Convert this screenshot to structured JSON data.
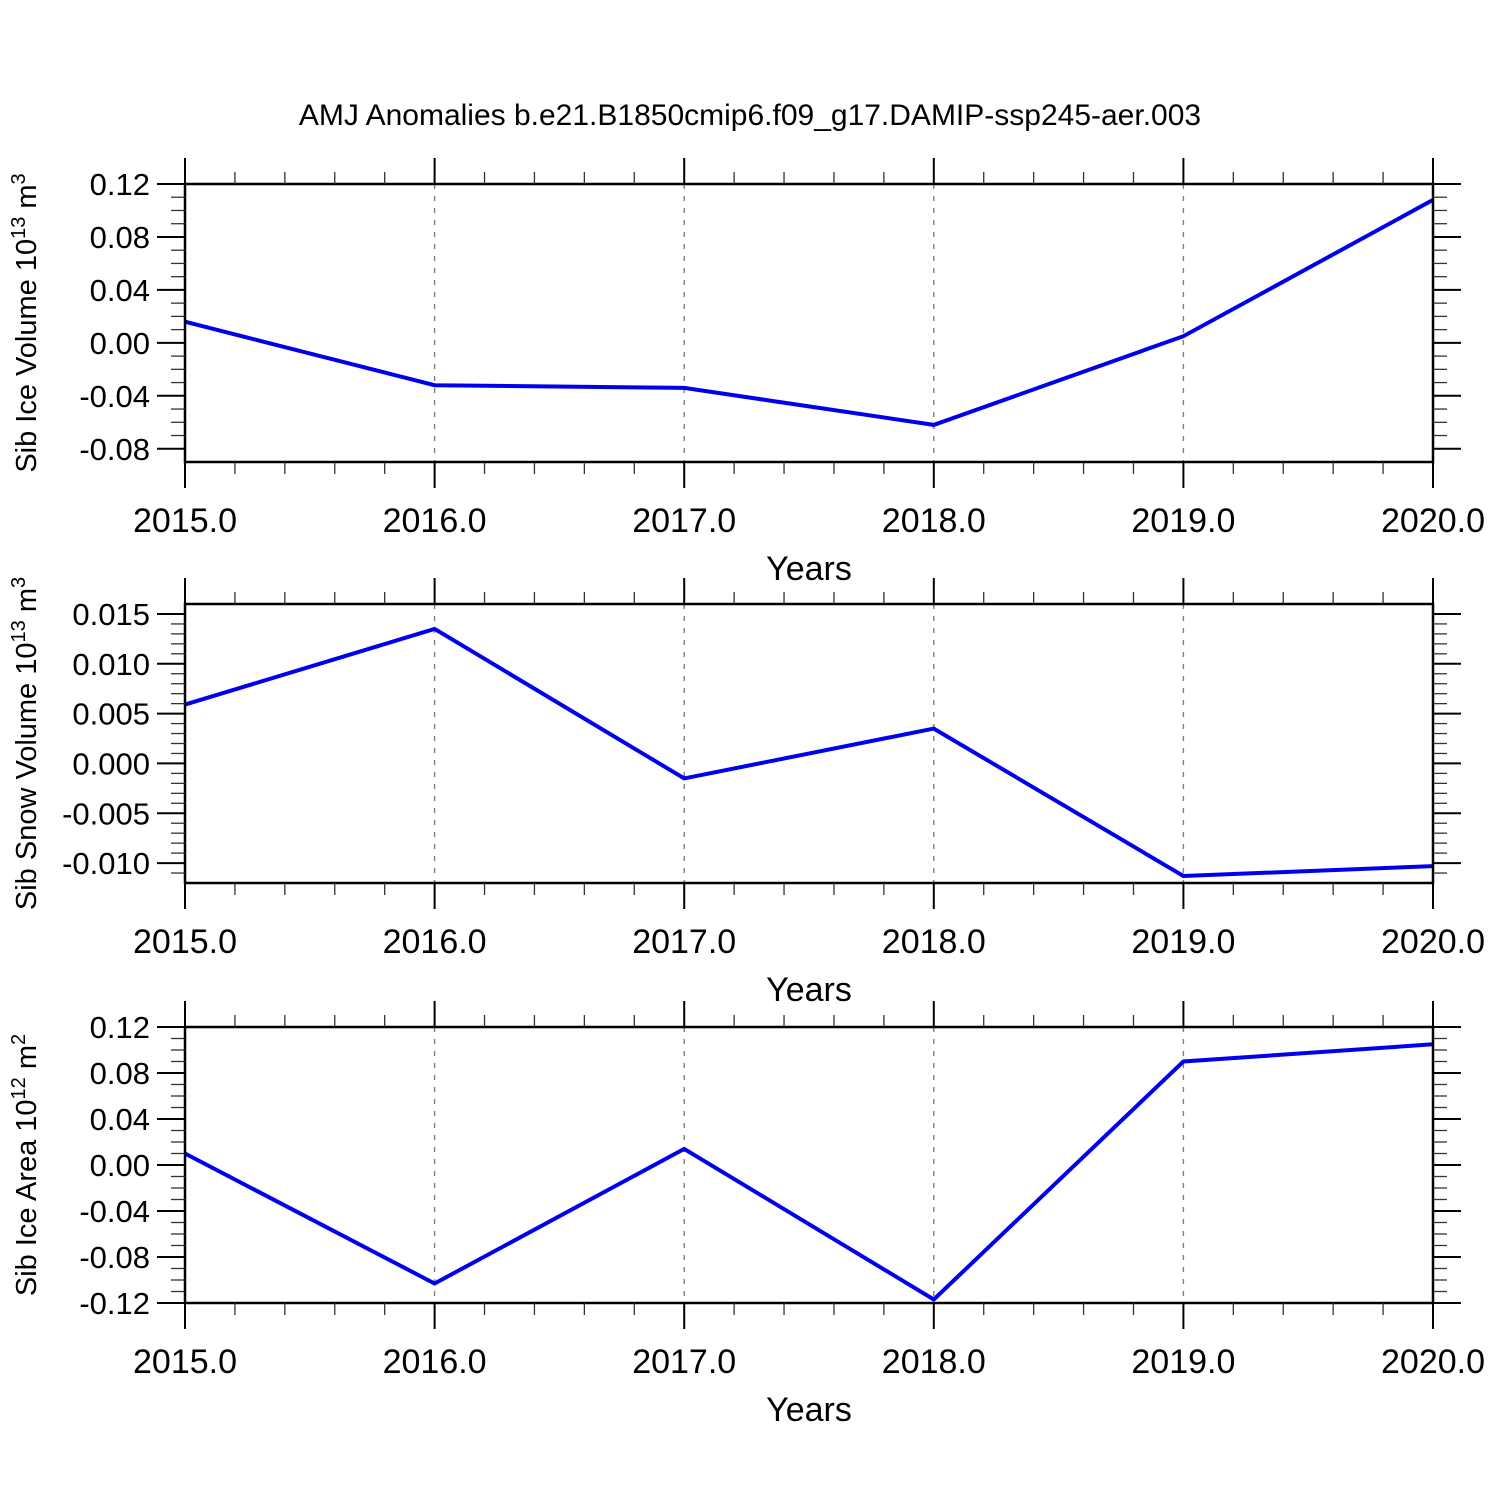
{
  "title": "AMJ Anomalies b.e21.B1850cmip6.f09_g17.DAMIP-ssp245-aer.003",
  "xlabel": "Years",
  "line_color": "#0000ee",
  "grid_color": "#808080",
  "axis_color": "#000000",
  "x_tick_labels": [
    "2015.0",
    "2016.0",
    "2017.0",
    "2018.0",
    "2019.0",
    "2020.0"
  ],
  "grid_years": [
    2016,
    2017,
    2018,
    2019
  ],
  "chart_data": [
    {
      "type": "line",
      "title": "",
      "xlabel": "Years",
      "ylabel": "Sib Ice Volume 10^13 m^3",
      "ylabel_parts": [
        {
          "t": "Sib Ice Volume 10"
        },
        {
          "t": "13",
          "sup": true
        },
        {
          "t": " m"
        },
        {
          "t": "3",
          "sup": true
        }
      ],
      "x": [
        2015.0,
        2016.0,
        2017.0,
        2018.0,
        2019.0,
        2020.0
      ],
      "values": [
        0.016,
        -0.032,
        -0.034,
        -0.062,
        0.005,
        0.108
      ],
      "xlim": [
        2015.0,
        2020.0
      ],
      "ylim": [
        -0.09,
        0.12
      ],
      "x_minor_step": 0.2,
      "y_major_ticks": [
        0.12,
        0.08,
        0.04,
        0.0,
        -0.04,
        -0.08
      ],
      "y_tick_labels": [
        "0.12",
        "0.08",
        "0.04",
        "0.00",
        "-0.04",
        "-0.08"
      ],
      "y_minor_step": 0.01,
      "grid": "vertical-dashed",
      "legend": "none"
    },
    {
      "type": "line",
      "title": "",
      "xlabel": "Years",
      "ylabel": "Sib Snow Volume 10^13 m^3",
      "ylabel_parts": [
        {
          "t": "Sib Snow Volume 10"
        },
        {
          "t": "13",
          "sup": true
        },
        {
          "t": " m"
        },
        {
          "t": "3",
          "sup": true
        }
      ],
      "x": [
        2015.0,
        2016.0,
        2017.0,
        2018.0,
        2019.0,
        2020.0
      ],
      "values": [
        0.0059,
        0.0135,
        -0.0015,
        0.0035,
        -0.0113,
        -0.0103
      ],
      "xlim": [
        2015.0,
        2020.0
      ],
      "ylim": [
        -0.012,
        0.016
      ],
      "x_minor_step": 0.2,
      "y_major_ticks": [
        0.015,
        0.01,
        0.005,
        0.0,
        -0.005,
        -0.01
      ],
      "y_tick_labels": [
        "0.015",
        "0.010",
        "0.005",
        "0.000",
        "-0.005",
        "-0.010"
      ],
      "y_minor_step": 0.001,
      "grid": "vertical-dashed",
      "legend": "none"
    },
    {
      "type": "line",
      "title": "",
      "xlabel": "Years",
      "ylabel": "Sib Ice Area 10^12 m^2",
      "ylabel_parts": [
        {
          "t": "Sib Ice Area 10"
        },
        {
          "t": "12",
          "sup": true
        },
        {
          "t": " m"
        },
        {
          "t": "2",
          "sup": true
        }
      ],
      "x": [
        2015.0,
        2016.0,
        2017.0,
        2018.0,
        2019.0,
        2020.0
      ],
      "values": [
        0.01,
        -0.103,
        0.014,
        -0.117,
        0.09,
        0.105
      ],
      "xlim": [
        2015.0,
        2020.0
      ],
      "ylim": [
        -0.12,
        0.12
      ],
      "x_minor_step": 0.2,
      "y_major_ticks": [
        0.12,
        0.08,
        0.04,
        0.0,
        -0.04,
        -0.08,
        -0.12
      ],
      "y_tick_labels": [
        "0.12",
        "0.08",
        "0.04",
        "0.00",
        "-0.04",
        "-0.08",
        "-0.12"
      ],
      "y_minor_step": 0.01,
      "grid": "vertical-dashed",
      "legend": "none"
    }
  ]
}
